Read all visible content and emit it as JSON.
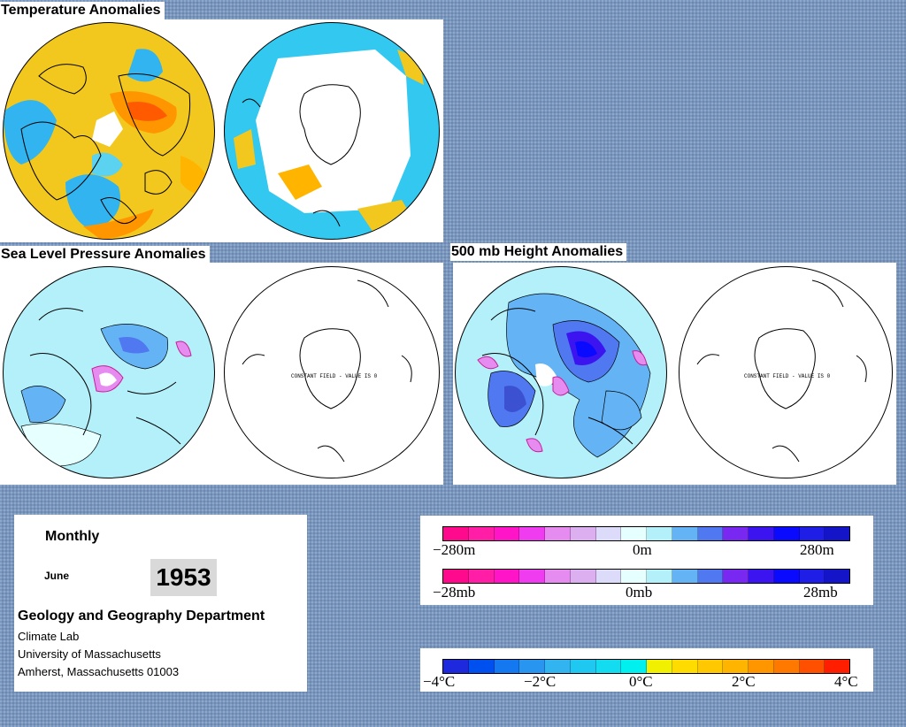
{
  "sections": {
    "temperature_title": "Temperature Anomalies",
    "slp_title": "Sea Level Pressure Anomalies",
    "height_title": "500 mb Height Anomalies"
  },
  "globe_annotations": {
    "slp_southern": "CONSTANT FIELD - VALUE IS 0",
    "height_southern": "CONSTANT FIELD - VALUE IS 0"
  },
  "info": {
    "period": "Monthly",
    "month": "June",
    "year": "1953",
    "department": "Geology and Geography Department",
    "lab": "Climate Lab",
    "university": "University of Massachusetts",
    "address": "Amherst, Massachusetts 01003"
  },
  "legends": {
    "height": {
      "min": "−280m",
      "mid": "0m",
      "max": "280m"
    },
    "pressure": {
      "min": "−28mb",
      "mid": "0mb",
      "max": "28mb"
    },
    "temperature": {
      "t1": "−4°C",
      "t2": "−2°C",
      "t3": "0°C",
      "t4": "2°C",
      "t5": "4°C"
    }
  },
  "colors": {
    "anomaly_scale": [
      "#ff0a8c",
      "#ff1ea5",
      "#ff14c8",
      "#f03cf0",
      "#e68cf0",
      "#dcaff0",
      "#dcdcfa",
      "#e6ffff",
      "#b4f0fa",
      "#64b4f5",
      "#5078f0",
      "#7828f0",
      "#3c14f0",
      "#0a0aff",
      "#1e1ee6",
      "#1414c8"
    ],
    "temperature_scale": [
      "#1e28dc",
      "#0050f0",
      "#1478f0",
      "#2896f0",
      "#32b4f0",
      "#1ec8f0",
      "#14dcf0",
      "#00f0f0",
      "#f0f000",
      "#ffdc00",
      "#ffc800",
      "#ffb400",
      "#ff9600",
      "#ff7800",
      "#ff5000",
      "#ff1e00"
    ]
  }
}
